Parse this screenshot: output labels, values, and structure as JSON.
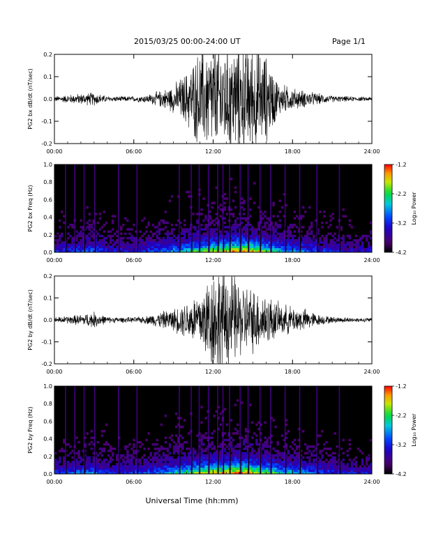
{
  "header": {
    "title": "2015/03/25  00:00-24:00 UT",
    "page": "Page 1/1"
  },
  "xlabel": "Universal Time (hh:mm)",
  "colors": {
    "axis": "#000000",
    "background": "#000000"
  },
  "chart_data": [
    {
      "type": "line",
      "ylabel": "PG2 bx dB/dt (nT/sec)",
      "xlim": [
        "00:00",
        "24:00"
      ],
      "ylim": [
        -0.2,
        0.2
      ],
      "x_ticks": [
        "00:00",
        "06:00",
        "12:00",
        "18:00",
        "24:00"
      ],
      "y_ticks": [
        "-0.2",
        "-0.1",
        "0.0",
        "0.1",
        "0.2"
      ],
      "envelope": {
        "hour": [
          0,
          1,
          2,
          3,
          4,
          5,
          6,
          7,
          8,
          9,
          10,
          11,
          12,
          13,
          14,
          15,
          16,
          17,
          18,
          19,
          20,
          21,
          22,
          23,
          24
        ],
        "amplitude": [
          0.01,
          0.015,
          0.02,
          0.025,
          0.01,
          0.01,
          0.01,
          0.015,
          0.03,
          0.05,
          0.1,
          0.18,
          0.2,
          0.2,
          0.2,
          0.2,
          0.16,
          0.06,
          0.04,
          0.03,
          0.02,
          0.012,
          0.01,
          0.008,
          0.008
        ]
      }
    },
    {
      "type": "heatmap",
      "ylabel": "PG2 bx Freq (Hz)",
      "xlim": [
        "00:00",
        "24:00"
      ],
      "ylim": [
        0.0,
        1.0
      ],
      "x_ticks": [
        "00:00",
        "06:00",
        "12:00",
        "18:00",
        "24:00"
      ],
      "y_ticks": [
        "0.0",
        "0.2",
        "0.4",
        "0.6",
        "0.8",
        "1.0"
      ],
      "colorbar": {
        "label": "Log₁₀ Power",
        "ticks": [
          "-1.2",
          "-2.2",
          "-3.2",
          "-4.2"
        ],
        "range": [
          -4.2,
          -1.2
        ]
      },
      "power_profile": {
        "hour": [
          0,
          1,
          2,
          3,
          4,
          5,
          6,
          7,
          8,
          9,
          10,
          11,
          12,
          13,
          14,
          15,
          16,
          17,
          18,
          19,
          20,
          21,
          22,
          23,
          24
        ],
        "low_freq_power": [
          -3.3,
          -3.2,
          -3.1,
          -3.0,
          -3.3,
          -3.4,
          -3.3,
          -3.2,
          -3.0,
          -2.8,
          -2.5,
          -2.2,
          -2.0,
          -1.8,
          -1.6,
          -1.8,
          -2.2,
          -2.6,
          -2.8,
          -3.0,
          -3.2,
          -3.3,
          -3.4,
          -3.5,
          -3.5
        ]
      },
      "vertical_streaks_hour": [
        0.8,
        1.5,
        2.2,
        3.0,
        4.8,
        6.2,
        9.4,
        10.3,
        10.9,
        11.6,
        12.3,
        12.7,
        13.2,
        14.0,
        14.6,
        15.5,
        16.3,
        17.4,
        18.5,
        19.8,
        21.5
      ]
    },
    {
      "type": "line",
      "ylabel": "PG2 by dB/dt (nT/sec)",
      "xlim": [
        "00:00",
        "24:00"
      ],
      "ylim": [
        -0.2,
        0.2
      ],
      "x_ticks": [
        "00:00",
        "06:00",
        "12:00",
        "18:00",
        "24:00"
      ],
      "y_ticks": [
        "-0.2",
        "-0.1",
        "0.0",
        "0.1",
        "0.2"
      ],
      "envelope": {
        "hour": [
          0,
          1,
          2,
          3,
          4,
          5,
          6,
          7,
          8,
          9,
          10,
          11,
          12,
          13,
          14,
          15,
          16,
          17,
          18,
          19,
          20,
          21,
          22,
          23,
          24
        ],
        "amplitude": [
          0.01,
          0.015,
          0.02,
          0.03,
          0.012,
          0.01,
          0.01,
          0.015,
          0.03,
          0.04,
          0.07,
          0.11,
          0.2,
          0.2,
          0.14,
          0.12,
          0.1,
          0.06,
          0.05,
          0.04,
          0.02,
          0.012,
          0.01,
          0.008,
          0.008
        ]
      }
    },
    {
      "type": "heatmap",
      "ylabel": "PG2 by Freq (Hz)",
      "xlim": [
        "00:00",
        "24:00"
      ],
      "ylim": [
        0.0,
        1.0
      ],
      "x_ticks": [
        "00:00",
        "06:00",
        "12:00",
        "18:00",
        "24:00"
      ],
      "y_ticks": [
        "0.0",
        "0.2",
        "0.4",
        "0.6",
        "0.8",
        "1.0"
      ],
      "colorbar": {
        "label": "Log₁₀ Power",
        "ticks": [
          "-1.2",
          "-2.2",
          "-3.2",
          "-4.2"
        ],
        "range": [
          -4.2,
          -1.2
        ]
      },
      "power_profile": {
        "hour": [
          0,
          1,
          2,
          3,
          4,
          5,
          6,
          7,
          8,
          9,
          10,
          11,
          12,
          13,
          14,
          15,
          16,
          17,
          18,
          19,
          20,
          21,
          22,
          23,
          24
        ],
        "low_freq_power": [
          -3.2,
          -3.1,
          -3.0,
          -2.9,
          -3.2,
          -3.3,
          -3.2,
          -3.1,
          -2.9,
          -2.6,
          -2.3,
          -2.0,
          -1.8,
          -1.7,
          -1.6,
          -1.8,
          -2.1,
          -2.5,
          -2.7,
          -2.9,
          -3.1,
          -3.2,
          -3.3,
          -3.4,
          -3.4
        ]
      },
      "vertical_streaks_hour": [
        0.8,
        1.5,
        2.2,
        3.0,
        4.8,
        6.2,
        9.4,
        10.3,
        10.9,
        11.6,
        12.3,
        12.7,
        13.2,
        14.0,
        14.6,
        15.5,
        16.3,
        17.4,
        18.5,
        19.8,
        21.5
      ]
    }
  ]
}
